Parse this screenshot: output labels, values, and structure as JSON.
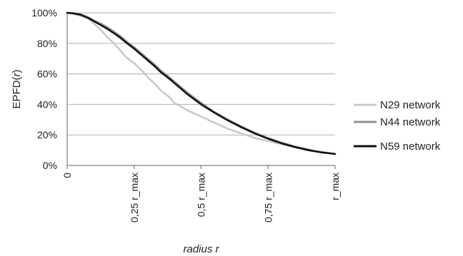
{
  "chart_data": {
    "type": "line",
    "xlabel": "radius r",
    "ylabel_prefix": "EPFD(",
    "ylabel_var": "r",
    "ylabel_suffix": ")",
    "x_ticks": [
      {
        "label": "0",
        "value": 0
      },
      {
        "label": "0,25 r_max",
        "value": 0.25
      },
      {
        "label": "0,5 r_max",
        "value": 0.5
      },
      {
        "label": "0,75 r_max",
        "value": 0.75
      },
      {
        "label": "r_max",
        "value": 1.0
      }
    ],
    "y_ticks": [
      "0%",
      "20%",
      "40%",
      "60%",
      "80%",
      "100%"
    ],
    "xlim": [
      0,
      1
    ],
    "ylim": [
      0,
      100
    ],
    "grid": "horizontal",
    "legend_position": "right",
    "series": [
      {
        "name": "N29 network",
        "color": "#c8c8c8",
        "x": [
          0,
          0.02,
          0.05,
          0.08,
          0.1,
          0.13,
          0.15,
          0.18,
          0.2,
          0.22,
          0.25,
          0.28,
          0.3,
          0.33,
          0.35,
          0.38,
          0.4,
          0.43,
          0.45,
          0.5,
          0.55,
          0.6,
          0.65,
          0.7,
          0.75,
          0.8,
          0.85,
          0.9,
          0.95,
          1.0
        ],
        "values": [
          100,
          99.5,
          98,
          96,
          93,
          88,
          84,
          79,
          75,
          71,
          67,
          62,
          58,
          53,
          49,
          45,
          41,
          38,
          36,
          32,
          28,
          24,
          21,
          18,
          16,
          14,
          12,
          10,
          9,
          7.5
        ]
      },
      {
        "name": "N44 network",
        "color": "#909090",
        "x": [
          0,
          0.02,
          0.05,
          0.08,
          0.1,
          0.13,
          0.15,
          0.18,
          0.2,
          0.22,
          0.25,
          0.28,
          0.3,
          0.33,
          0.35,
          0.38,
          0.4,
          0.43,
          0.45,
          0.5,
          0.55,
          0.6,
          0.65,
          0.7,
          0.75,
          0.8,
          0.85,
          0.9,
          0.95,
          1.0
        ],
        "values": [
          100,
          99.8,
          99,
          97,
          95,
          92.5,
          90.5,
          87,
          84.5,
          81.5,
          77.5,
          73,
          70,
          65.5,
          62,
          58,
          55,
          50.5,
          47.5,
          41,
          35,
          30,
          25.5,
          21.5,
          18,
          15,
          12.5,
          10.5,
          8.5,
          7.5
        ]
      },
      {
        "name": "N59 network",
        "color": "#111111",
        "x": [
          0,
          0.02,
          0.05,
          0.08,
          0.1,
          0.13,
          0.15,
          0.18,
          0.2,
          0.22,
          0.25,
          0.28,
          0.3,
          0.33,
          0.35,
          0.38,
          0.4,
          0.43,
          0.45,
          0.5,
          0.55,
          0.6,
          0.65,
          0.7,
          0.75,
          0.8,
          0.85,
          0.9,
          0.95,
          1.0
        ],
        "values": [
          100,
          99.7,
          98.8,
          96.5,
          94.5,
          91.5,
          89.5,
          86,
          83.5,
          80.5,
          76.5,
          72,
          69,
          64.5,
          61,
          57,
          54,
          49.5,
          46.5,
          40,
          34.5,
          29.5,
          25,
          21,
          17.5,
          14.5,
          12,
          10,
          8.5,
          7.5
        ]
      }
    ]
  }
}
